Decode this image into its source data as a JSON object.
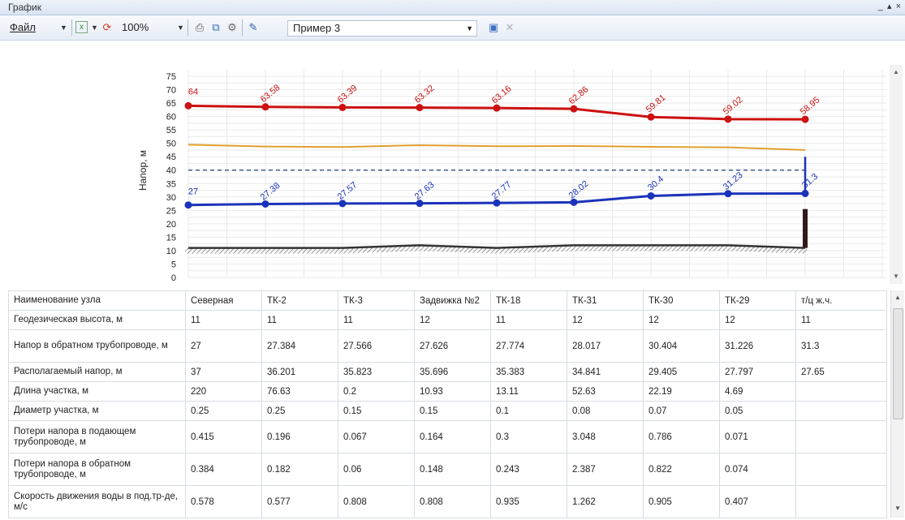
{
  "window": {
    "title": "График",
    "controls": "_ ▴ ×"
  },
  "toolbar": {
    "file_label": "Файл",
    "zoom": "100%",
    "scheme": "Пример 3"
  },
  "table": {
    "rows": [
      {
        "label": "Наименование узла",
        "cells": [
          "Северная",
          "ТК-2",
          "ТК-3",
          "Задвижка №2",
          "ТК-18",
          "ТК-31",
          "ТК-30",
          "ТК-29",
          "т/ц ж.ч."
        ]
      },
      {
        "label": "Геодезическая высота, м",
        "cells": [
          "11",
          "11",
          "11",
          "12",
          "11",
          "12",
          "12",
          "12",
          "11"
        ]
      },
      {
        "label": "Напор в обратном трубопроводе, м",
        "cells": [
          "27",
          "27.384",
          "27.566",
          "27.626",
          "27.774",
          "28.017",
          "30.404",
          "31.226",
          "31.3"
        ]
      },
      {
        "label": "Располагаемый напор, м",
        "cells": [
          "37",
          "36.201",
          "35.823",
          "35.696",
          "35.383",
          "34.841",
          "29.405",
          "27.797",
          "27.65"
        ]
      },
      {
        "label": "Длина участка, м",
        "cells": [
          "220",
          "76.63",
          "0.2",
          "10.93",
          "13.11",
          "52.63",
          "22.19",
          "4.69",
          ""
        ]
      },
      {
        "label": "Диаметр участка, м",
        "cells": [
          "0.25",
          "0.25",
          "0.15",
          "0.15",
          "0.1",
          "0.08",
          "0.07",
          "0.05",
          ""
        ]
      },
      {
        "label": "Потери напора в подающем трубопроводе, м",
        "cells": [
          "0.415",
          "0.196",
          "0.067",
          "0.164",
          "0.3",
          "3.048",
          "0.786",
          "0.071",
          ""
        ]
      },
      {
        "label": "Потери напора в обратном трубопроводе, м",
        "cells": [
          "0.384",
          "0.182",
          "0.06",
          "0.148",
          "0.243",
          "2.387",
          "0.822",
          "0.074",
          ""
        ]
      },
      {
        "label": "Скорость движения воды в под.тр-де, м/с",
        "cells": [
          "0.578",
          "0.577",
          "0.808",
          "0.808",
          "0.935",
          "1.262",
          "0.905",
          "0.407",
          ""
        ]
      }
    ]
  },
  "chart_data": {
    "type": "line",
    "ylabel": "Напор, м",
    "ylim": [
      0,
      75
    ],
    "yticks": [
      0,
      5,
      10,
      15,
      20,
      25,
      30,
      35,
      40,
      45,
      50,
      55,
      60,
      65,
      70,
      75
    ],
    "grid": true,
    "x": [
      0,
      1,
      2,
      3,
      4,
      5,
      6,
      7,
      8
    ],
    "series": [
      {
        "role": "supply",
        "color": "#cc1111",
        "values": [
          64,
          63.58,
          63.39,
          63.32,
          63.16,
          62.86,
          59.81,
          59.02,
          58.95
        ],
        "labels": [
          "64",
          "63.58",
          "63.39",
          "63.32",
          "63.16",
          "62.86",
          "59.81",
          "59.02",
          "58.95"
        ]
      },
      {
        "role": "return",
        "color": "#1a33bb",
        "values": [
          27,
          27.38,
          27.57,
          27.63,
          27.77,
          28.02,
          30.4,
          31.23,
          31.3
        ],
        "labels": [
          "27",
          "27.38",
          "27.57",
          "27.63",
          "27.77",
          "28.02",
          "30.4",
          "31.23",
          "31.3"
        ]
      },
      {
        "role": "static",
        "color": "#e0a030",
        "values": [
          49.5,
          48.8,
          48.6,
          49.3,
          48.9,
          49.0,
          48.7,
          48.5,
          47.5
        ]
      },
      {
        "role": "limit",
        "color": "#223d7a",
        "style": "dashed",
        "values": [
          40,
          40,
          40,
          40,
          40,
          40,
          40,
          40,
          40
        ]
      },
      {
        "role": "ground",
        "color": "#333333",
        "values": [
          11,
          11,
          11,
          12,
          11,
          12,
          12,
          12,
          11
        ]
      }
    ],
    "end_marker": {
      "from": 11,
      "to": 25.5,
      "color": "#331a1a"
    }
  }
}
